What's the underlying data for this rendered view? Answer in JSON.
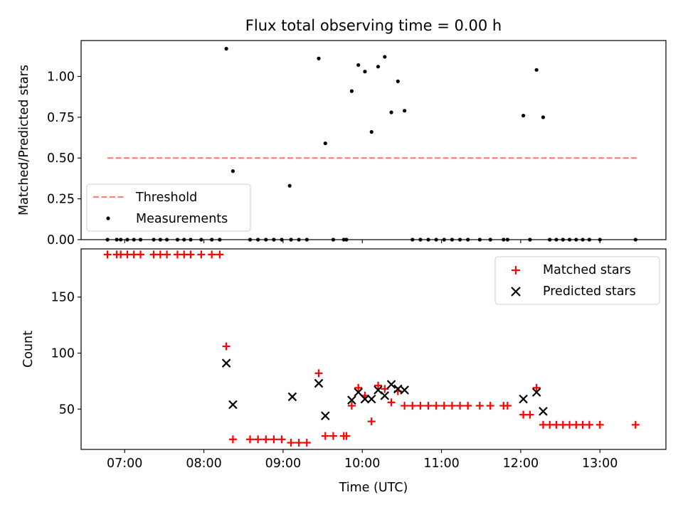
{
  "colors": {
    "threshold": "#ff7f7f",
    "matched": "#ff0000",
    "predicted": "#000000",
    "measurement": "#000000"
  },
  "chart_data": [
    {
      "type": "scatter",
      "title": "Flux total observing time = 0.00 h",
      "xlabel": "",
      "ylabel": "Matched/Predicted stars",
      "xlim": [
        "06:27",
        "13:50"
      ],
      "ylim": [
        0,
        1.22
      ],
      "yticks": [
        "0.00",
        "0.25",
        "0.50",
        "0.75",
        "1.00"
      ],
      "ytick_values": [
        0,
        0.25,
        0.5,
        0.75,
        1.0
      ],
      "xticks": [
        "07:00",
        "08:00",
        "09:00",
        "10:00",
        "11:00",
        "12:00",
        "13:00"
      ],
      "legend_position": "lower-left",
      "threshold": {
        "name": "Threshold",
        "value": 0.5,
        "x_range": [
          "06:47",
          "13:28"
        ]
      },
      "series": [
        {
          "name": "Measurements",
          "points": [
            [
              "06:47",
              0
            ],
            [
              "06:54",
              0
            ],
            [
              "06:57",
              0
            ],
            [
              "07:02",
              0
            ],
            [
              "07:07",
              0
            ],
            [
              "07:12",
              0
            ],
            [
              "07:22",
              0
            ],
            [
              "07:27",
              0
            ],
            [
              "07:32",
              0
            ],
            [
              "07:40",
              0
            ],
            [
              "07:45",
              0
            ],
            [
              "07:50",
              0
            ],
            [
              "07:58",
              0
            ],
            [
              "08:06",
              0
            ],
            [
              "08:12",
              0
            ],
            [
              "08:17",
              1.17
            ],
            [
              "08:22",
              0.42
            ],
            [
              "08:35",
              0
            ],
            [
              "08:41",
              0
            ],
            [
              "08:47",
              0
            ],
            [
              "08:53",
              0
            ],
            [
              "08:59",
              0
            ],
            [
              "09:05",
              0.33
            ],
            [
              "09:06",
              0
            ],
            [
              "09:12",
              0
            ],
            [
              "09:18",
              0
            ],
            [
              "09:27",
              1.11
            ],
            [
              "09:32",
              0.59
            ],
            [
              "09:38",
              0
            ],
            [
              "09:46",
              0
            ],
            [
              "09:48",
              0
            ],
            [
              "09:52",
              0.91
            ],
            [
              "09:57",
              1.07
            ],
            [
              "10:02",
              1.03
            ],
            [
              "10:07",
              0.66
            ],
            [
              "10:12",
              1.06
            ],
            [
              "10:17",
              1.12
            ],
            [
              "10:22",
              0.78
            ],
            [
              "10:27",
              0.97
            ],
            [
              "10:32",
              0.79
            ],
            [
              "10:38",
              0
            ],
            [
              "10:44",
              0
            ],
            [
              "10:50",
              0
            ],
            [
              "10:56",
              0
            ],
            [
              "11:02",
              0
            ],
            [
              "11:08",
              0
            ],
            [
              "11:14",
              0
            ],
            [
              "11:20",
              0
            ],
            [
              "11:29",
              0
            ],
            [
              "11:37",
              0
            ],
            [
              "11:47",
              0
            ],
            [
              "11:50",
              0
            ],
            [
              "12:02",
              0.76
            ],
            [
              "12:07",
              0
            ],
            [
              "12:12",
              1.04
            ],
            [
              "12:17",
              0.75
            ],
            [
              "12:22",
              0
            ],
            [
              "12:27",
              0
            ],
            [
              "12:32",
              0
            ],
            [
              "12:37",
              0
            ],
            [
              "12:42",
              0
            ],
            [
              "12:47",
              0
            ],
            [
              "12:52",
              0
            ],
            [
              "13:00",
              0
            ],
            [
              "13:27",
              0
            ]
          ]
        }
      ]
    },
    {
      "type": "scatter",
      "title": "",
      "xlabel": "Time (UTC)",
      "ylabel": "Count",
      "xlim": [
        "06:27",
        "13:50"
      ],
      "ylim": [
        14,
        193
      ],
      "yticks": [
        "50",
        "100",
        "150"
      ],
      "ytick_values": [
        50,
        100,
        150
      ],
      "xticks": [
        "07:00",
        "08:00",
        "09:00",
        "10:00",
        "11:00",
        "12:00",
        "13:00"
      ],
      "legend_position": "upper-right",
      "series": [
        {
          "name": "Matched stars",
          "marker": "plus",
          "points": [
            [
              "06:47",
              188
            ],
            [
              "06:54",
              188
            ],
            [
              "06:57",
              188
            ],
            [
              "07:02",
              188
            ],
            [
              "07:07",
              188
            ],
            [
              "07:12",
              188
            ],
            [
              "07:22",
              188
            ],
            [
              "07:27",
              188
            ],
            [
              "07:32",
              188
            ],
            [
              "07:40",
              188
            ],
            [
              "07:45",
              188
            ],
            [
              "07:50",
              188
            ],
            [
              "07:58",
              188
            ],
            [
              "08:06",
              188
            ],
            [
              "08:12",
              188
            ],
            [
              "08:17",
              106
            ],
            [
              "08:22",
              23
            ],
            [
              "08:35",
              23
            ],
            [
              "08:41",
              23
            ],
            [
              "08:47",
              23
            ],
            [
              "08:53",
              23
            ],
            [
              "08:59",
              23
            ],
            [
              "09:06",
              20
            ],
            [
              "09:12",
              20
            ],
            [
              "09:18",
              20
            ],
            [
              "09:27",
              82
            ],
            [
              "09:32",
              26
            ],
            [
              "09:38",
              26
            ],
            [
              "09:46",
              26
            ],
            [
              "09:48",
              26
            ],
            [
              "09:52",
              53
            ],
            [
              "09:57",
              69
            ],
            [
              "10:02",
              62
            ],
            [
              "10:07",
              39
            ],
            [
              "10:12",
              71
            ],
            [
              "10:17",
              68
            ],
            [
              "10:22",
              56
            ],
            [
              "10:27",
              66
            ],
            [
              "10:32",
              53
            ],
            [
              "10:38",
              53
            ],
            [
              "10:44",
              53
            ],
            [
              "10:50",
              53
            ],
            [
              "10:56",
              53
            ],
            [
              "11:02",
              53
            ],
            [
              "11:08",
              53
            ],
            [
              "11:14",
              53
            ],
            [
              "11:20",
              53
            ],
            [
              "11:29",
              53
            ],
            [
              "11:37",
              53
            ],
            [
              "11:47",
              53
            ],
            [
              "11:50",
              53
            ],
            [
              "12:02",
              45
            ],
            [
              "12:07",
              45
            ],
            [
              "12:12",
              69
            ],
            [
              "12:17",
              36
            ],
            [
              "12:22",
              36
            ],
            [
              "12:27",
              36
            ],
            [
              "12:32",
              36
            ],
            [
              "12:37",
              36
            ],
            [
              "12:42",
              36
            ],
            [
              "12:47",
              36
            ],
            [
              "12:52",
              36
            ],
            [
              "13:00",
              36
            ],
            [
              "13:27",
              36
            ]
          ]
        },
        {
          "name": "Predicted stars",
          "marker": "x",
          "points": [
            [
              "08:17",
              91
            ],
            [
              "08:22",
              54
            ],
            [
              "09:07",
              61
            ],
            [
              "09:27",
              73
            ],
            [
              "09:32",
              44
            ],
            [
              "09:52",
              58
            ],
            [
              "09:57",
              65
            ],
            [
              "10:02",
              59
            ],
            [
              "10:07",
              59
            ],
            [
              "10:12",
              67
            ],
            [
              "10:17",
              62
            ],
            [
              "10:22",
              72
            ],
            [
              "10:27",
              68
            ],
            [
              "10:32",
              67
            ],
            [
              "12:02",
              59
            ],
            [
              "12:12",
              65
            ],
            [
              "12:17",
              48
            ]
          ]
        }
      ]
    }
  ]
}
